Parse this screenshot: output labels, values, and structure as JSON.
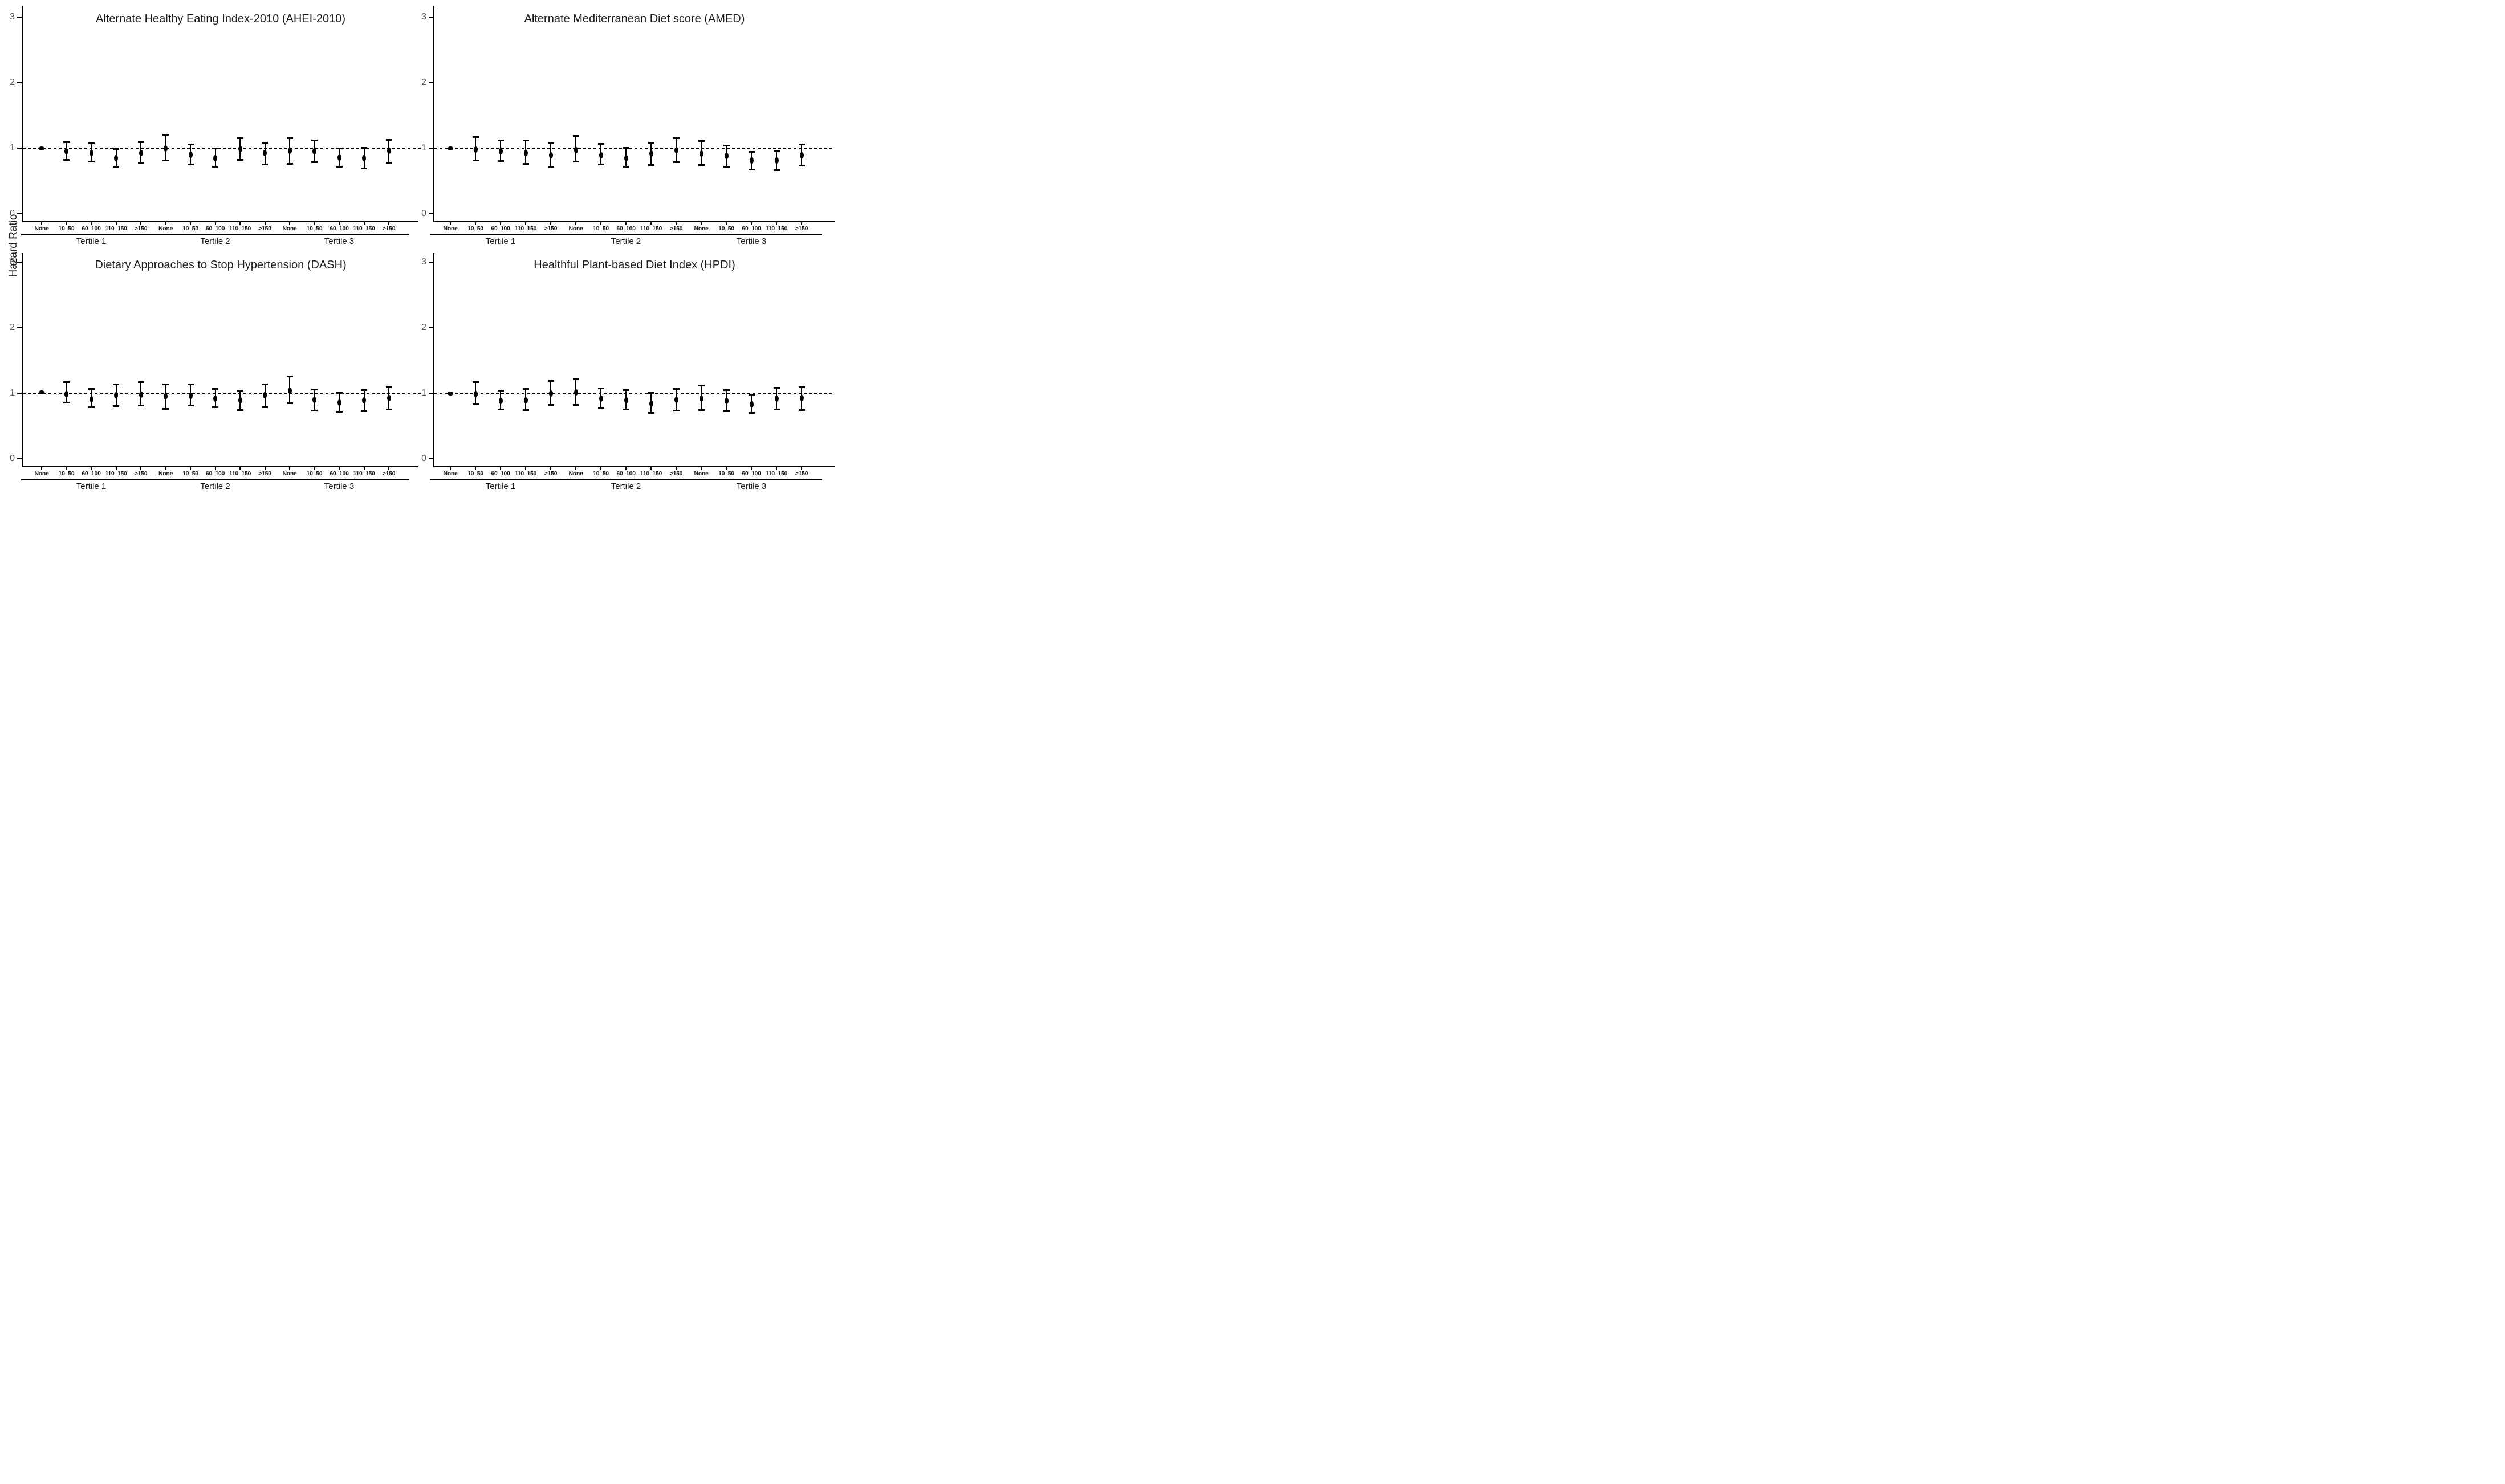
{
  "figure": {
    "y_axis_label": "Hazard Ratio",
    "y_ticks": [
      3,
      2,
      1,
      0
    ],
    "reference_line_value": 1,
    "categories": [
      "None",
      "10–50",
      "60–100",
      "110–150",
      ">150"
    ],
    "tertile_labels": [
      "Tertile 1",
      "Tertile 2",
      "Tertile 3"
    ]
  },
  "chart_data": [
    {
      "type": "scatter",
      "subtype": "forest-errorbar",
      "title": "Alternate Healthy Eating Index-2010 (AHEI-2010)",
      "ylabel": "Hazard Ratio",
      "ylim": [
        -0.15,
        3.2
      ],
      "y_ticks": [
        0,
        1,
        2,
        3
      ],
      "reference_line": 1.0,
      "grid": false,
      "groups": [
        {
          "label": "Tertile 1",
          "points": [
            {
              "cat": "None",
              "hr": 1.0,
              "lo": null,
              "hi": null,
              "ref": true
            },
            {
              "cat": "10–50",
              "hr": 0.95,
              "lo": 0.82,
              "hi": 1.1
            },
            {
              "cat": "60–100",
              "hr": 0.93,
              "lo": 0.79,
              "hi": 1.08
            },
            {
              "cat": "110–150",
              "hr": 0.85,
              "lo": 0.71,
              "hi": 0.99
            },
            {
              "cat": ">150",
              "hr": 0.93,
              "lo": 0.77,
              "hi": 1.1
            }
          ]
        },
        {
          "label": "Tertile 2",
          "points": [
            {
              "cat": "None",
              "hr": 1.0,
              "lo": 0.81,
              "hi": 1.21
            },
            {
              "cat": "10–50",
              "hr": 0.9,
              "lo": 0.75,
              "hi": 1.06
            },
            {
              "cat": "60–100",
              "hr": 0.85,
              "lo": 0.71,
              "hi": 1.0
            },
            {
              "cat": "110–150",
              "hr": 0.99,
              "lo": 0.82,
              "hi": 1.16
            },
            {
              "cat": ">150",
              "hr": 0.93,
              "lo": 0.75,
              "hi": 1.09
            }
          ]
        },
        {
          "label": "Tertile 3",
          "points": [
            {
              "cat": "None",
              "hr": 0.96,
              "lo": 0.76,
              "hi": 1.16
            },
            {
              "cat": "10–50",
              "hr": 0.95,
              "lo": 0.78,
              "hi": 1.12
            },
            {
              "cat": "60–100",
              "hr": 0.86,
              "lo": 0.71,
              "hi": 1.0
            },
            {
              "cat": "110–150",
              "hr": 0.85,
              "lo": 0.69,
              "hi": 1.01
            },
            {
              "cat": ">150",
              "hr": 0.96,
              "lo": 0.77,
              "hi": 1.13
            }
          ]
        }
      ]
    },
    {
      "type": "scatter",
      "subtype": "forest-errorbar",
      "title": "Alternate Mediterranean Diet score (AMED)",
      "ylabel": "Hazard Ratio",
      "ylim": [
        -0.15,
        3.2
      ],
      "y_ticks": [
        0,
        1,
        2,
        3
      ],
      "reference_line": 1.0,
      "grid": false,
      "groups": [
        {
          "label": "Tertile 1",
          "points": [
            {
              "cat": "None",
              "hr": 1.0,
              "lo": null,
              "hi": null,
              "ref": true
            },
            {
              "cat": "10–50",
              "hr": 0.98,
              "lo": 0.81,
              "hi": 1.17
            },
            {
              "cat": "60–100",
              "hr": 0.95,
              "lo": 0.8,
              "hi": 1.12
            },
            {
              "cat": "110–150",
              "hr": 0.93,
              "lo": 0.76,
              "hi": 1.12
            },
            {
              "cat": ">150",
              "hr": 0.89,
              "lo": 0.71,
              "hi": 1.08
            }
          ]
        },
        {
          "label": "Tertile 2",
          "points": [
            {
              "cat": "None",
              "hr": 0.97,
              "lo": 0.79,
              "hi": 1.19
            },
            {
              "cat": "10–50",
              "hr": 0.89,
              "lo": 0.75,
              "hi": 1.07
            },
            {
              "cat": "60–100",
              "hr": 0.85,
              "lo": 0.71,
              "hi": 1.01
            },
            {
              "cat": "110–150",
              "hr": 0.92,
              "lo": 0.74,
              "hi": 1.09
            },
            {
              "cat": ">150",
              "hr": 0.97,
              "lo": 0.78,
              "hi": 1.16
            }
          ]
        },
        {
          "label": "Tertile 3",
          "points": [
            {
              "cat": "None",
              "hr": 0.92,
              "lo": 0.74,
              "hi": 1.11
            },
            {
              "cat": "10–50",
              "hr": 0.88,
              "lo": 0.71,
              "hi": 1.04
            },
            {
              "cat": "60–100",
              "hr": 0.81,
              "lo": 0.67,
              "hi": 0.95
            },
            {
              "cat": "110–150",
              "hr": 0.81,
              "lo": 0.66,
              "hi": 0.96
            },
            {
              "cat": ">150",
              "hr": 0.89,
              "lo": 0.73,
              "hi": 1.06
            }
          ]
        }
      ]
    },
    {
      "type": "scatter",
      "subtype": "forest-errorbar",
      "title": "Dietary Approaches to Stop Hypertension (DASH)",
      "ylabel": "Hazard Ratio",
      "ylim": [
        -0.15,
        3.2
      ],
      "y_ticks": [
        0,
        1,
        2,
        3
      ],
      "reference_line": 1.0,
      "grid": false,
      "groups": [
        {
          "label": "Tertile 1",
          "points": [
            {
              "cat": "None",
              "hr": 1.01,
              "lo": null,
              "hi": null,
              "ref": true
            },
            {
              "cat": "10–50",
              "hr": 0.99,
              "lo": 0.85,
              "hi": 1.17
            },
            {
              "cat": "60–100",
              "hr": 0.91,
              "lo": 0.78,
              "hi": 1.07
            },
            {
              "cat": "110–150",
              "hr": 0.97,
              "lo": 0.8,
              "hi": 1.14
            },
            {
              "cat": ">150",
              "hr": 0.98,
              "lo": 0.81,
              "hi": 1.17
            }
          ]
        },
        {
          "label": "Tertile 2",
          "points": [
            {
              "cat": "None",
              "hr": 0.95,
              "lo": 0.76,
              "hi": 1.14
            },
            {
              "cat": "10–50",
              "hr": 0.96,
              "lo": 0.81,
              "hi": 1.14
            },
            {
              "cat": "60–100",
              "hr": 0.92,
              "lo": 0.78,
              "hi": 1.07
            },
            {
              "cat": "110–150",
              "hr": 0.89,
              "lo": 0.74,
              "hi": 1.04
            },
            {
              "cat": ">150",
              "hr": 0.97,
              "lo": 0.78,
              "hi": 1.14
            }
          ]
        },
        {
          "label": "Tertile 3",
          "points": [
            {
              "cat": "None",
              "hr": 1.04,
              "lo": 0.84,
              "hi": 1.26
            },
            {
              "cat": "10–50",
              "hr": 0.9,
              "lo": 0.73,
              "hi": 1.06
            },
            {
              "cat": "60–100",
              "hr": 0.86,
              "lo": 0.71,
              "hi": 1.01
            },
            {
              "cat": "110–150",
              "hr": 0.89,
              "lo": 0.72,
              "hi": 1.05
            },
            {
              "cat": ">150",
              "hr": 0.93,
              "lo": 0.75,
              "hi": 1.1
            }
          ]
        }
      ]
    },
    {
      "type": "scatter",
      "subtype": "forest-errorbar",
      "title": "Healthful Plant-based Diet Index (HPDI)",
      "ylabel": "Hazard Ratio",
      "ylim": [
        -0.15,
        3.2
      ],
      "y_ticks": [
        0,
        1,
        2,
        3
      ],
      "reference_line": 1.0,
      "grid": false,
      "groups": [
        {
          "label": "Tertile 1",
          "points": [
            {
              "cat": "None",
              "hr": 1.0,
              "lo": null,
              "hi": null,
              "ref": true
            },
            {
              "cat": "10–50",
              "hr": 0.99,
              "lo": 0.83,
              "hi": 1.17
            },
            {
              "cat": "60–100",
              "hr": 0.88,
              "lo": 0.75,
              "hi": 1.04
            },
            {
              "cat": "110–150",
              "hr": 0.89,
              "lo": 0.74,
              "hi": 1.07
            },
            {
              "cat": ">150",
              "hr": 1.0,
              "lo": 0.82,
              "hi": 1.19
            }
          ]
        },
        {
          "label": "Tertile 2",
          "points": [
            {
              "cat": "None",
              "hr": 1.01,
              "lo": 0.82,
              "hi": 1.22
            },
            {
              "cat": "10–50",
              "hr": 0.92,
              "lo": 0.77,
              "hi": 1.08
            },
            {
              "cat": "60–100",
              "hr": 0.89,
              "lo": 0.75,
              "hi": 1.05
            },
            {
              "cat": "110–150",
              "hr": 0.84,
              "lo": 0.7,
              "hi": 1.01
            },
            {
              "cat": ">150",
              "hr": 0.9,
              "lo": 0.73,
              "hi": 1.07
            }
          ]
        },
        {
          "label": "Tertile 3",
          "points": [
            {
              "cat": "None",
              "hr": 0.92,
              "lo": 0.74,
              "hi": 1.12
            },
            {
              "cat": "10–50",
              "hr": 0.88,
              "lo": 0.72,
              "hi": 1.05
            },
            {
              "cat": "60–100",
              "hr": 0.83,
              "lo": 0.7,
              "hi": 0.98
            },
            {
              "cat": "110–150",
              "hr": 0.92,
              "lo": 0.75,
              "hi": 1.09
            },
            {
              "cat": ">150",
              "hr": 0.93,
              "lo": 0.74,
              "hi": 1.1
            }
          ]
        }
      ]
    }
  ]
}
